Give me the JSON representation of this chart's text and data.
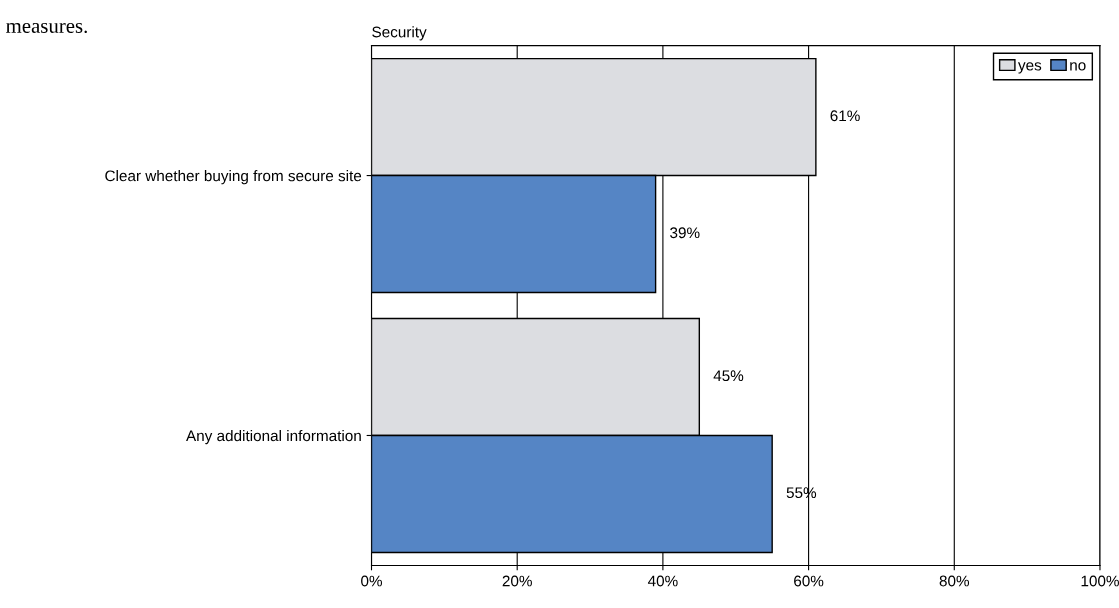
{
  "chart_data": {
    "type": "bar",
    "orientation": "horizontal",
    "title": "Security",
    "categories": [
      "Clear whether buying from secure site",
      "Any additional information"
    ],
    "series": [
      {
        "name": "yes",
        "color": "#dcdde1",
        "values": [
          61,
          45
        ],
        "value_labels": [
          "61%",
          "45%"
        ]
      },
      {
        "name": "no",
        "color": "#5585c5",
        "values": [
          39,
          55
        ],
        "value_labels": [
          "39%",
          "55%"
        ]
      }
    ],
    "xlim": [
      0,
      100
    ],
    "xticks": [
      {
        "value": 0,
        "label": "0%"
      },
      {
        "value": 20,
        "label": "20%"
      },
      {
        "value": 40,
        "label": "40%"
      },
      {
        "value": 60,
        "label": "60%"
      },
      {
        "value": 80,
        "label": "80%"
      },
      {
        "value": 100,
        "label": "100%"
      }
    ],
    "grid": "x",
    "legend": "top right",
    "annotations": [
      "measures."
    ]
  }
}
